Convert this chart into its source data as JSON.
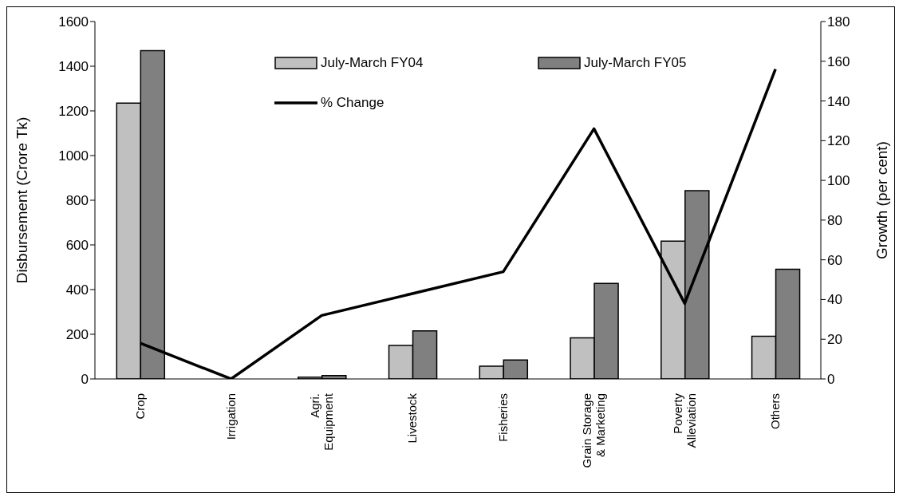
{
  "chart_data": {
    "type": "bar",
    "categories": [
      "Crop",
      "Irrigation",
      "Agri.\nEquipment",
      "Livestock",
      "Fisheries",
      "Grain Storage\n& Marketing",
      "Poverty\nAlleviation",
      "Others"
    ],
    "series": [
      {
        "name": "July-March FY04",
        "color": "#c0c0c0",
        "values": [
          1235,
          0,
          8,
          150,
          57,
          184,
          617,
          191
        ]
      },
      {
        "name": "July-March FY05",
        "color": "#808080",
        "values": [
          1470,
          0,
          15,
          215,
          85,
          428,
          843,
          491
        ]
      },
      {
        "name": "% Change",
        "type": "line",
        "axis": "y2",
        "color": "#000000",
        "values": [
          18,
          0,
          32,
          43,
          54,
          126,
          38,
          156
        ]
      }
    ],
    "ylabel": "Disbursement  (Crore Tk)",
    "y2label": "Growth (per cent)",
    "ylim": [
      0,
      1600
    ],
    "yticks": [
      0,
      200,
      400,
      600,
      800,
      1000,
      1200,
      1400,
      1600
    ],
    "y2lim": [
      0,
      180
    ],
    "y2ticks": [
      0,
      20,
      40,
      60,
      80,
      100,
      120,
      140,
      160,
      180
    ],
    "grid": false,
    "legend": "top",
    "marker": "none",
    "line_style": "solid"
  }
}
